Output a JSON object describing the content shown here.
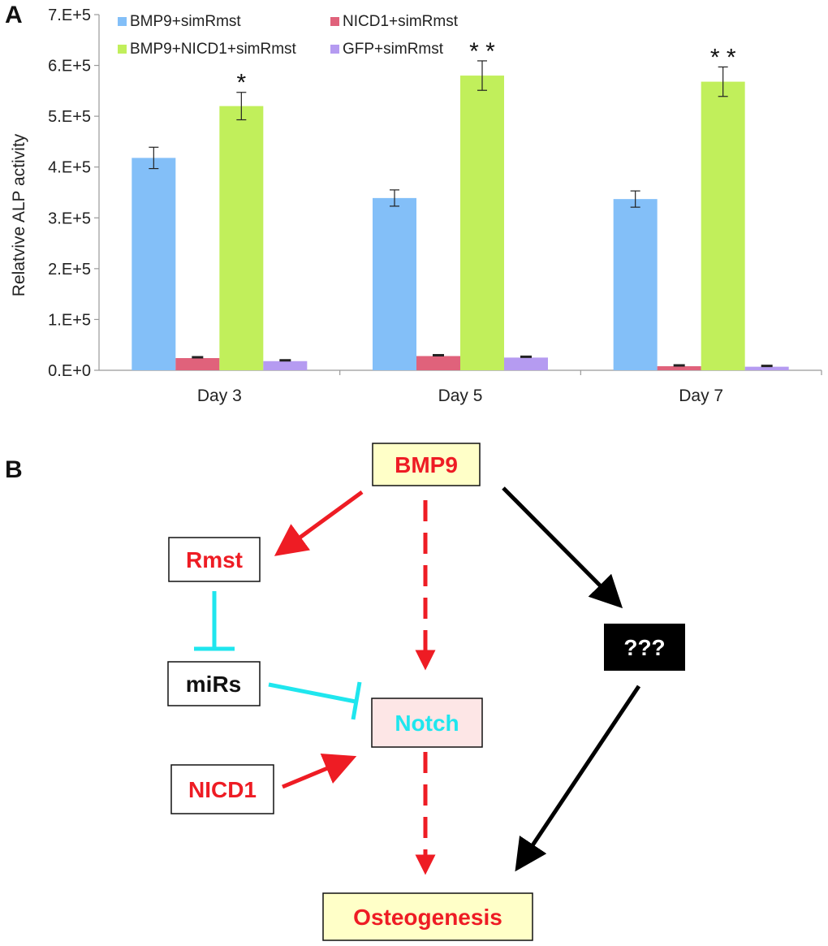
{
  "panel_a_label": "A",
  "panel_b_label": "B",
  "colors": {
    "bmp9": "#83bff8",
    "nicd1": "#e0627b",
    "bmp9_nicd1": "#c1ef5b",
    "gfp": "#b59bf1",
    "red": "#ee1c24",
    "cyan": "#1fe6ee",
    "black": "#000000",
    "yellow_box": "#ffffc8",
    "pink_box": "#fde6e6"
  },
  "chart_data": {
    "type": "bar",
    "ylabel": "Relatvive ALP activity",
    "xlabel": "",
    "ylim": [
      0,
      700000
    ],
    "yticks": [
      {
        "value": 0,
        "label": "0.E+0"
      },
      {
        "value": 100000,
        "label": "1.E+5"
      },
      {
        "value": 200000,
        "label": "2.E+5"
      },
      {
        "value": 300000,
        "label": "3.E+5"
      },
      {
        "value": 400000,
        "label": "4.E+5"
      },
      {
        "value": 500000,
        "label": "5.E+5"
      },
      {
        "value": 600000,
        "label": "6.E+5"
      },
      {
        "value": 700000,
        "label": "7.E+5"
      }
    ],
    "categories": [
      "Day 3",
      "Day 5",
      "Day 7"
    ],
    "legend_position": "top",
    "series": [
      {
        "name": "BMP9+simRmst",
        "color": "#83bff8",
        "values": [
          418000,
          339000,
          337000
        ],
        "errors": [
          21000,
          16000,
          16000
        ]
      },
      {
        "name": "NICD1+simRmst",
        "color": "#e0627b",
        "values": [
          24000,
          28000,
          8000
        ],
        "errors": [
          1500,
          1500,
          1000
        ]
      },
      {
        "name": "BMP9+NICD1+simRmst",
        "color": "#c1ef5b",
        "values": [
          520000,
          580000,
          568000
        ],
        "errors": [
          27000,
          29000,
          29000
        ]
      },
      {
        "name": "GFP+simRmst",
        "color": "#b59bf1",
        "values": [
          18000,
          25000,
          7000
        ],
        "errors": [
          1500,
          1500,
          1000
        ]
      }
    ],
    "annotations": [
      {
        "category": "Day 3",
        "series": "BMP9+NICD1+simRmst",
        "text": "*"
      },
      {
        "category": "Day 5",
        "series": "BMP9+NICD1+simRmst",
        "text": "* *"
      },
      {
        "category": "Day 7",
        "series": "BMP9+NICD1+simRmst",
        "text": "* *"
      }
    ]
  },
  "diagram": {
    "nodes": {
      "bmp9": "BMP9",
      "rmst": "Rmst",
      "mirs": "miRs",
      "notch": "Notch",
      "nicd1": "NICD1",
      "unknown": "???",
      "osteogenesis": "Osteogenesis"
    }
  }
}
